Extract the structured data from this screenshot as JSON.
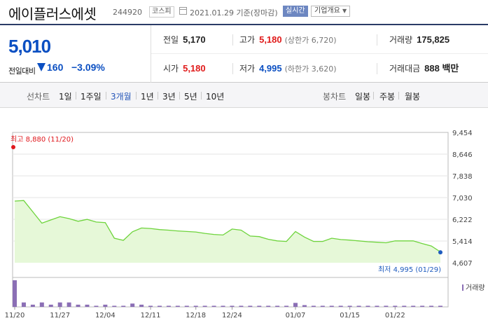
{
  "header": {
    "name": "에이플러스에셋",
    "code": "244920",
    "market": "코스피",
    "date": "2021.01.29 기준(장마감)",
    "realtime": "실시간",
    "corp_info": "기업개요"
  },
  "quote": {
    "price": "5,010",
    "change_label": "전일대비",
    "change_value": "160",
    "change_pct": "−3.09%",
    "prev_label": "전일",
    "prev_value": "5,170",
    "high_label": "고가",
    "high_value": "5,180",
    "upper_limit": "(상한가 6,720)",
    "volume_label": "거래량",
    "volume_value": "175,825",
    "open_label": "시가",
    "open_value": "5,180",
    "low_label": "저가",
    "low_value": "4,995",
    "lower_limit": "(하한가 3,620)",
    "amount_label": "거래대금",
    "amount_value": "888 백만",
    "colors": {
      "up": "#e01a1a",
      "down": "#0b4fc2"
    }
  },
  "tabs": {
    "line_label": "선차트",
    "line_tabs": [
      "1일",
      "1주일",
      "3개월",
      "1년",
      "3년",
      "5년",
      "10년"
    ],
    "active": "3개월",
    "candle_label": "봉차트",
    "candle_tabs": [
      "일봉",
      "주봉",
      "월봉"
    ]
  },
  "chart_data": {
    "type": "area",
    "y_ticks": [
      9454,
      8646,
      7838,
      7030,
      6222,
      5414,
      4607
    ],
    "ylim": [
      4607,
      9454
    ],
    "x_tick_labels": [
      "11/20",
      "11/27",
      "12/04",
      "12/11",
      "12/18",
      "12/24",
      "01/07",
      "01/15",
      "01/22"
    ],
    "dates": [
      "11/20",
      "11/23",
      "11/24",
      "11/25",
      "11/26",
      "11/27",
      "11/30",
      "12/01",
      "12/02",
      "12/03",
      "12/04",
      "12/07",
      "12/08",
      "12/09",
      "12/10",
      "12/11",
      "12/14",
      "12/15",
      "12/16",
      "12/17",
      "12/18",
      "12/21",
      "12/22",
      "12/23",
      "12/24",
      "12/28",
      "12/29",
      "12/30",
      "01/04",
      "01/05",
      "01/06",
      "01/07",
      "01/08",
      "01/11",
      "01/12",
      "01/13",
      "01/14",
      "01/15",
      "01/18",
      "01/19",
      "01/20",
      "01/21",
      "01/22",
      "01/25",
      "01/26",
      "01/27",
      "01/28",
      "01/29"
    ],
    "price": [
      6900,
      6920,
      6500,
      6080,
      6200,
      6320,
      6250,
      6150,
      6220,
      6120,
      6100,
      5520,
      5440,
      5760,
      5900,
      5880,
      5840,
      5820,
      5790,
      5770,
      5750,
      5700,
      5660,
      5640,
      5860,
      5820,
      5600,
      5580,
      5480,
      5420,
      5400,
      5770,
      5560,
      5400,
      5400,
      5520,
      5470,
      5450,
      5420,
      5390,
      5370,
      5350,
      5420,
      5420,
      5420,
      5320,
      5230,
      5010
    ],
    "volume": [
      12,
      2,
      1,
      2,
      1,
      2,
      2,
      1,
      1,
      0.5,
      1,
      0.5,
      0.5,
      1.5,
      1,
      0.5,
      0.5,
      0.5,
      0.5,
      0.5,
      0.5,
      0.5,
      0.5,
      0.5,
      0.5,
      0.5,
      0.5,
      0.5,
      0.5,
      0.5,
      0.5,
      1.8,
      0.8,
      0.5,
      0.5,
      0.5,
      0.5,
      0.5,
      0.5,
      0.5,
      0.5,
      0.5,
      0.5,
      0.5,
      0.5,
      0.5,
      0.5,
      0.5
    ],
    "max_label": "최고 8,880 (11/20)",
    "min_label": "최저 4,995 (01/29)",
    "volume_legend": "거래량",
    "colors": {
      "line": "#6ed43c",
      "fill": "#e6f8d8",
      "volume": "#8b6fb5",
      "max": "#e0171c",
      "min": "#1f5cbf"
    }
  }
}
